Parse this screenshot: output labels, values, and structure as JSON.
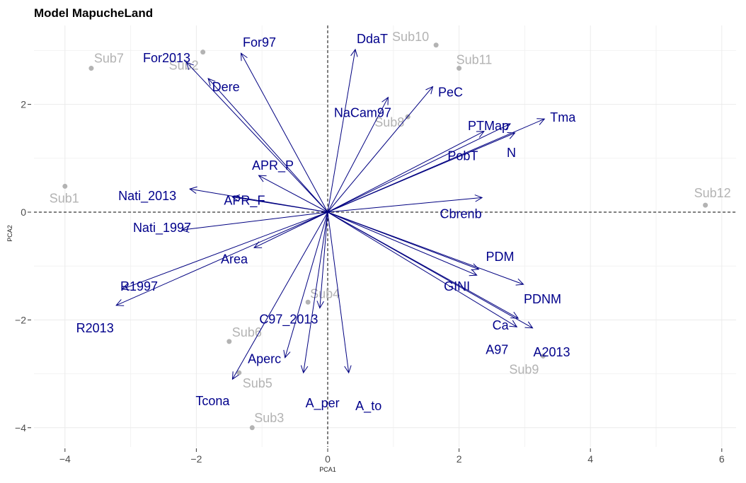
{
  "chart_data": {
    "type": "scatter",
    "subtype": "pca-biplot",
    "title": "Model MapucheLand",
    "xlabel": "PCA1",
    "ylabel": "PCA2",
    "xlim": [
      -4.4,
      6.2
    ],
    "ylim": [
      -4.3,
      3.4
    ],
    "x_ticks": [
      -4,
      -2,
      0,
      2,
      4,
      6
    ],
    "y_ticks": [
      -4,
      -2,
      0,
      2
    ],
    "grid": true,
    "reference_lines": {
      "x": 0,
      "y": 0,
      "style": "dashed"
    },
    "colors": {
      "arrow": "#000080",
      "variable_label": "#00008b",
      "observation": "#b3b3b3",
      "grid": "#ebebeb"
    },
    "observations": [
      {
        "name": "Sub1",
        "x": -4.0,
        "y": 0.48
      },
      {
        "name": "Sub2",
        "x": -1.9,
        "y": 2.97
      },
      {
        "name": "Sub3",
        "x": -1.15,
        "y": -4.0
      },
      {
        "name": "Sub4",
        "x": -0.3,
        "y": -1.67
      },
      {
        "name": "Sub5",
        "x": -1.35,
        "y": -2.98
      },
      {
        "name": "Sub6",
        "x": -1.5,
        "y": -2.4
      },
      {
        "name": "Sub7",
        "x": -3.6,
        "y": 2.67
      },
      {
        "name": "Sub8",
        "x": 1.22,
        "y": 1.77
      },
      {
        "name": "Sub9",
        "x": 3.28,
        "y": -2.67
      },
      {
        "name": "Sub10",
        "x": 1.65,
        "y": 3.1
      },
      {
        "name": "Sub11",
        "x": 2.0,
        "y": 2.67
      },
      {
        "name": "Sub12",
        "x": 5.75,
        "y": 0.13
      }
    ],
    "variables": [
      {
        "name": "For2013",
        "x": -2.15,
        "y": 2.78
      },
      {
        "name": "For97",
        "x": -1.32,
        "y": 2.95
      },
      {
        "name": "DdaT",
        "x": 0.42,
        "y": 3.02
      },
      {
        "name": "PeC",
        "x": 1.6,
        "y": 2.33
      },
      {
        "name": "Dere",
        "x": -1.82,
        "y": 2.48
      },
      {
        "name": "NaCam97",
        "x": 0.92,
        "y": 2.13
      },
      {
        "name": "PTMap",
        "x": 2.78,
        "y": 1.64
      },
      {
        "name": "Tma",
        "x": 3.3,
        "y": 1.73
      },
      {
        "name": "PobT",
        "x": 2.38,
        "y": 1.5
      },
      {
        "name": "N",
        "x": 2.85,
        "y": 1.47
      },
      {
        "name": "APR_P",
        "x": -1.05,
        "y": 0.68
      },
      {
        "name": "Nati_2013",
        "x": -2.1,
        "y": 0.43
      },
      {
        "name": "APR_F",
        "x": -1.45,
        "y": 0.28
      },
      {
        "name": "Cbrenb",
        "x": 2.35,
        "y": 0.27
      },
      {
        "name": "Nati_1997",
        "x": -2.22,
        "y": -0.33
      },
      {
        "name": "Area",
        "x": -1.12,
        "y": -0.66
      },
      {
        "name": "PDM",
        "x": 2.3,
        "y": -1.06
      },
      {
        "name": "R1997",
        "x": -3.13,
        "y": -1.43
      },
      {
        "name": "PDNM",
        "x": 2.98,
        "y": -1.34
      },
      {
        "name": "GINI",
        "x": 2.27,
        "y": -1.17
      },
      {
        "name": "R2013",
        "x": -3.22,
        "y": -1.73
      },
      {
        "name": "Ca",
        "x": 2.9,
        "y": -1.97
      },
      {
        "name": "A97",
        "x": 2.88,
        "y": -2.13
      },
      {
        "name": "A2013",
        "x": 3.12,
        "y": -2.15
      },
      {
        "name": "C97_2013",
        "x": -0.12,
        "y": -1.78
      },
      {
        "name": "Aperc",
        "x": -0.65,
        "y": -2.7
      },
      {
        "name": "A_per",
        "x": -0.37,
        "y": -2.98
      },
      {
        "name": "A_to",
        "x": 0.32,
        "y": -2.98
      },
      {
        "name": "Tcona",
        "x": -1.45,
        "y": -3.1
      }
    ]
  }
}
